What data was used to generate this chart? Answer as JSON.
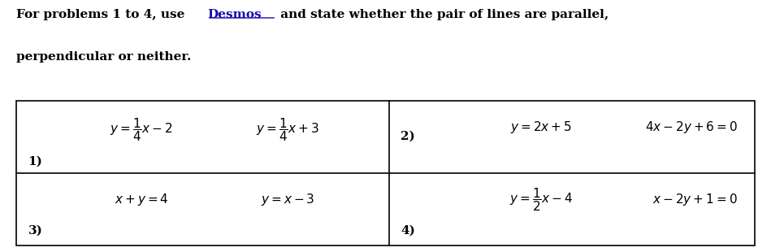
{
  "title_line1": "For problems 1 to 4, use ",
  "title_desmos": "Desmos",
  "title_line1_end": " and state whether the pair of lines are parallel,",
  "title_line2": "perpendicular or neither.",
  "bg_color": "#ffffff",
  "table_outline_color": "#000000",
  "text_color": "#000000",
  "desmos_color": "#1a0dab",
  "figsize": [
    9.49,
    3.1
  ],
  "dpi": 100
}
